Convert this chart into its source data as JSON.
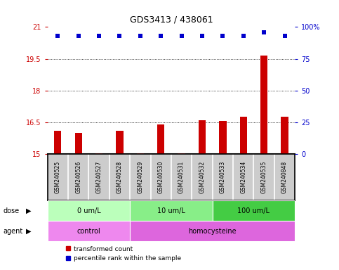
{
  "title": "GDS3413 / 438061",
  "samples": [
    "GSM240525",
    "GSM240526",
    "GSM240527",
    "GSM240528",
    "GSM240529",
    "GSM240530",
    "GSM240531",
    "GSM240532",
    "GSM240533",
    "GSM240534",
    "GSM240535",
    "GSM240848"
  ],
  "transformed_counts": [
    16.1,
    16.0,
    15.05,
    16.1,
    15.05,
    16.4,
    15.05,
    16.6,
    16.55,
    16.75,
    19.65,
    16.75
  ],
  "percentile_ranks": [
    93,
    93,
    93,
    93,
    93,
    93,
    93,
    93,
    93,
    93,
    96,
    93
  ],
  "bar_color": "#cc0000",
  "dot_color": "#0000cc",
  "ylim_left": [
    15,
    21
  ],
  "ylim_right": [
    0,
    100
  ],
  "yticks_left": [
    15,
    16.5,
    18,
    19.5,
    21
  ],
  "yticks_right": [
    0,
    25,
    50,
    75,
    100
  ],
  "gridlines": [
    16.5,
    18,
    19.5
  ],
  "dose_groups": [
    {
      "label": "0 um/L",
      "start": 0,
      "end": 4,
      "color": "#bbffbb"
    },
    {
      "label": "10 um/L",
      "start": 4,
      "end": 8,
      "color": "#88ee88"
    },
    {
      "label": "100 um/L",
      "start": 8,
      "end": 12,
      "color": "#44cc44"
    }
  ],
  "agent_groups": [
    {
      "label": "control",
      "start": 0,
      "end": 4,
      "color": "#ee88ee"
    },
    {
      "label": "homocysteine",
      "start": 4,
      "end": 12,
      "color": "#dd66dd"
    }
  ],
  "dose_label": "dose",
  "agent_label": "agent",
  "legend_bar_label": "transformed count",
  "legend_dot_label": "percentile rank within the sample",
  "background_color": "#ffffff",
  "sample_bg_color": "#cccccc",
  "left_tick_color": "#cc0000",
  "right_tick_color": "#0000cc",
  "bar_width": 0.35
}
